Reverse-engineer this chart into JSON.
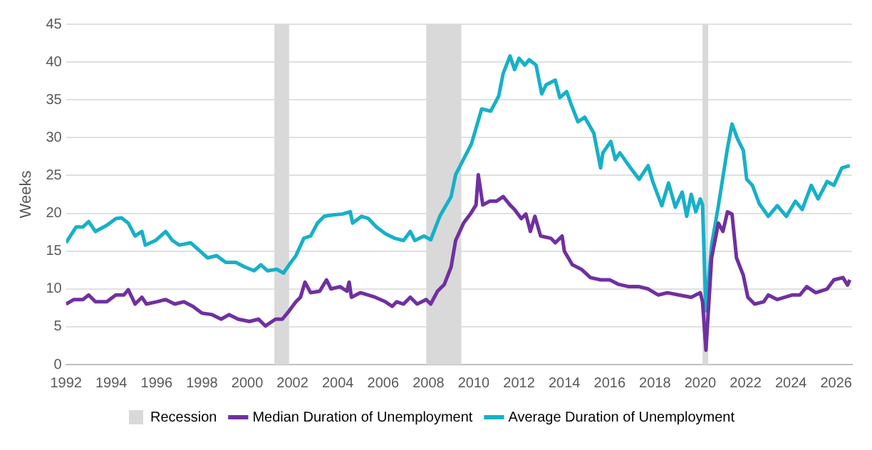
{
  "chart_data": {
    "type": "line",
    "ylabel": "Weeks",
    "xlim": [
      1992,
      2026.7
    ],
    "xticks": [
      1992,
      1994,
      1996,
      1998,
      2000,
      2002,
      2004,
      2006,
      2008,
      2010,
      2012,
      2014,
      2016,
      2018,
      2020,
      2022,
      2024,
      2026
    ],
    "ylim": [
      0,
      45
    ],
    "yticks": [
      0,
      5,
      10,
      15,
      20,
      25,
      30,
      35,
      40,
      45
    ],
    "grid": "y",
    "legend": "bottom",
    "marker": "none",
    "line_style": "solid",
    "bands": [
      {
        "axis": "x",
        "from": 2001.2,
        "to": 2001.85,
        "label": "Recession",
        "color": "#d9d9d9"
      },
      {
        "axis": "x",
        "from": 2007.9,
        "to": 2009.45,
        "color": "#d9d9d9"
      },
      {
        "axis": "x",
        "from": 2020.1,
        "to": 2020.35,
        "color": "#d9d9d9"
      }
    ],
    "series": [
      {
        "name": "Median Duration of Unemployment",
        "color": "#7030a0",
        "x": [
          1992,
          1992.35,
          1992.75,
          1993,
          1993.3,
          1993.8,
          1994.2,
          1994.55,
          1994.75,
          1995.05,
          1995.35,
          1995.55,
          1996,
          1996.4,
          1996.8,
          1997.2,
          1997.6,
          1998,
          1998.45,
          1998.85,
          1999.2,
          1999.6,
          2000.1,
          2000.5,
          2000.8,
          2001.25,
          2001.55,
          2001.85,
          2002.15,
          2002.35,
          2002.55,
          2002.8,
          2003.2,
          2003.5,
          2003.7,
          2004.1,
          2004.4,
          2004.5,
          2004.6,
          2005,
          2005.65,
          2006.1,
          2006.4,
          2006.6,
          2006.9,
          2007.2,
          2007.5,
          2007.9,
          2008.1,
          2008.4,
          2008.7,
          2009,
          2009.2,
          2009.55,
          2009.85,
          2010.1,
          2010.2,
          2010.4,
          2010.7,
          2011,
          2011.3,
          2011.6,
          2011.8,
          2012.1,
          2012.3,
          2012.5,
          2012.7,
          2012.95,
          2013.4,
          2013.6,
          2013.9,
          2014,
          2014.35,
          2014.75,
          2015.15,
          2015.6,
          2016,
          2016.4,
          2016.85,
          2017.3,
          2017.7,
          2018.15,
          2018.55,
          2019.05,
          2019.6,
          2020,
          2020.1,
          2020.25,
          2020.5,
          2020.8,
          2021,
          2021.2,
          2021.4,
          2021.6,
          2021.9,
          2022.1,
          2022.4,
          2022.8,
          2023,
          2023.4,
          2024.05,
          2024.4,
          2024.7,
          2025.1,
          2025.6,
          2025.9,
          2026.3,
          2026.5,
          2026.6
        ],
        "values": [
          8.0,
          8.6,
          8.6,
          9.2,
          8.3,
          8.3,
          9.2,
          9.2,
          9.9,
          8.0,
          8.9,
          8.0,
          8.3,
          8.6,
          8.0,
          8.3,
          7.7,
          6.8,
          6.6,
          6.0,
          6.6,
          6.0,
          5.7,
          6.0,
          5.1,
          6.0,
          6.0,
          7.1,
          8.3,
          8.9,
          10.9,
          9.5,
          9.7,
          11.2,
          10.0,
          10.3,
          9.7,
          10.9,
          8.9,
          9.5,
          8.9,
          8.3,
          7.7,
          8.3,
          8.0,
          8.9,
          8.0,
          8.6,
          8.0,
          9.7,
          10.6,
          12.9,
          16.4,
          18.7,
          19.9,
          21.1,
          25.1,
          21.1,
          21.6,
          21.6,
          22.2,
          21.1,
          20.5,
          19.3,
          19.9,
          17.6,
          19.6,
          17.0,
          16.7,
          16.1,
          17.0,
          15.0,
          13.2,
          12.6,
          11.5,
          11.2,
          11.2,
          10.6,
          10.3,
          10.3,
          10.0,
          9.2,
          9.5,
          9.2,
          8.9,
          9.5,
          8.3,
          1.9,
          14.1,
          18.7,
          17.6,
          20.2,
          19.9,
          14.1,
          11.8,
          8.9,
          8.0,
          8.3,
          9.2,
          8.6,
          9.2,
          9.2,
          10.3,
          9.5,
          10.0,
          11.2,
          11.5,
          10.5,
          11.2
        ]
      },
      {
        "name": "Average Duration of Unemployment",
        "color": "#17b0c8",
        "x": [
          1992,
          1992.45,
          1992.75,
          1993,
          1993.3,
          1993.8,
          1994.2,
          1994.45,
          1994.75,
          1995.05,
          1995.35,
          1995.5,
          1995.95,
          1996.4,
          1996.7,
          1997,
          1997.5,
          1997.8,
          1998.25,
          1998.65,
          1999.05,
          1999.5,
          1999.9,
          2000.3,
          2000.6,
          2000.9,
          2001.3,
          2001.6,
          2001.85,
          2002.15,
          2002.5,
          2002.8,
          2003.1,
          2003.4,
          2003.8,
          2004.2,
          2004.55,
          2004.65,
          2005.05,
          2005.35,
          2005.7,
          2006.1,
          2006.5,
          2006.9,
          2007.2,
          2007.4,
          2007.8,
          2008.1,
          2008.5,
          2009,
          2009.2,
          2009.9,
          2010.35,
          2010.75,
          2011.1,
          2011.3,
          2011.6,
          2011.8,
          2012,
          2012.25,
          2012.45,
          2012.75,
          2013,
          2013.2,
          2013.6,
          2013.8,
          2014.1,
          2014.3,
          2014.6,
          2014.9,
          2015.3,
          2015.6,
          2015.7,
          2016.05,
          2016.25,
          2016.45,
          2016.85,
          2017.3,
          2017.7,
          2017.9,
          2018.3,
          2018.6,
          2018.9,
          2019.2,
          2019.4,
          2019.6,
          2019.8,
          2020,
          2020.1,
          2020.25,
          2020.5,
          2020.8,
          2021.2,
          2021.4,
          2021.65,
          2021.9,
          2022.05,
          2022.3,
          2022.6,
          2023,
          2023.4,
          2023.8,
          2024.2,
          2024.5,
          2024.9,
          2025.2,
          2025.6,
          2025.9,
          2026.25,
          2026.6
        ],
        "values": [
          16.1,
          18.2,
          18.2,
          18.9,
          17.6,
          18.4,
          19.3,
          19.4,
          18.7,
          17.0,
          17.6,
          15.8,
          16.4,
          17.6,
          16.4,
          15.8,
          16.1,
          15.3,
          14.1,
          14.4,
          13.5,
          13.5,
          12.9,
          12.4,
          13.2,
          12.4,
          12.6,
          12.1,
          13.2,
          14.4,
          16.7,
          17.0,
          18.7,
          19.6,
          19.8,
          19.9,
          20.2,
          18.7,
          19.6,
          19.3,
          18.2,
          17.3,
          16.7,
          16.4,
          17.6,
          16.4,
          17.0,
          16.5,
          19.6,
          22.2,
          25.1,
          29.2,
          33.8,
          33.5,
          35.5,
          38.5,
          40.8,
          39.0,
          40.5,
          39.6,
          40.3,
          39.6,
          35.8,
          37.0,
          37.6,
          35.3,
          36.1,
          34.4,
          32.1,
          32.7,
          30.6,
          26.0,
          28.0,
          29.5,
          27.1,
          28.0,
          26.3,
          24.5,
          26.3,
          24.2,
          21.0,
          24.0,
          20.8,
          22.8,
          19.6,
          22.5,
          20.2,
          21.9,
          21.1,
          7.1,
          15.8,
          21.0,
          28.6,
          31.8,
          29.8,
          28.3,
          24.5,
          23.7,
          21.3,
          19.6,
          21.0,
          19.6,
          21.6,
          20.5,
          23.7,
          21.9,
          24.2,
          23.7,
          26.0,
          26.3
        ]
      }
    ]
  }
}
